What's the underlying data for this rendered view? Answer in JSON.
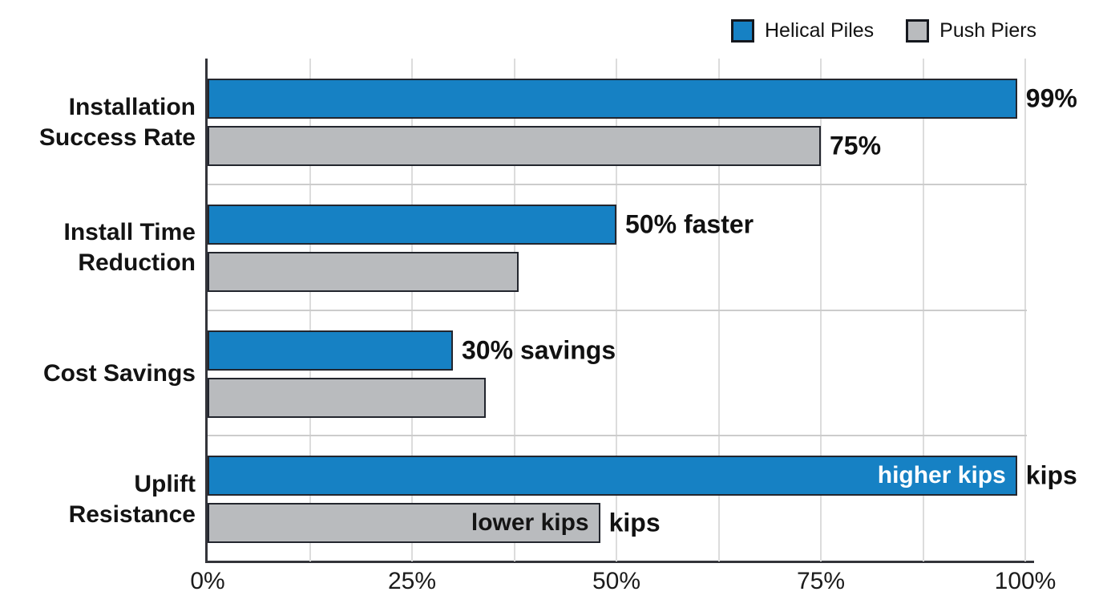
{
  "legend": {
    "items": [
      {
        "label": "Helical Piles",
        "color": "#1681c4"
      },
      {
        "label": "Push Piers",
        "color": "#b9bbbe"
      }
    ]
  },
  "chart_data": {
    "type": "bar",
    "orientation": "horizontal",
    "title": "",
    "xlabel": "",
    "ylabel": "",
    "categories": [
      "Installation Success Rate",
      "Install Time Reduction",
      "Cost Savings",
      "Uplift Resistance"
    ],
    "series": [
      {
        "name": "Helical Piles",
        "color": "#1681c4",
        "values": [
          99,
          50,
          30,
          99
        ],
        "outer_labels": [
          "99%",
          "50% faster",
          "30% savings",
          "kips"
        ],
        "inner_labels": [
          "",
          "",
          "",
          "higher kips"
        ],
        "inner_label_color": "#ffffff"
      },
      {
        "name": "Push Piers",
        "color": "#b9bbbe",
        "values": [
          75,
          38,
          34,
          48
        ],
        "outer_labels": [
          "75%",
          "",
          "",
          "kips"
        ],
        "inner_labels": [
          "",
          "",
          "",
          "lower kips"
        ],
        "inner_label_color": "#141414"
      }
    ],
    "xlim": [
      0,
      100
    ],
    "x_ticks": [
      {
        "label": "0%",
        "pct": 0
      },
      {
        "label": "25%",
        "pct": 25
      },
      {
        "label": "50%",
        "pct": 50
      },
      {
        "label": "75%",
        "pct": 75
      },
      {
        "label": "100%",
        "pct": 100
      }
    ],
    "minor_gridlines_pct": [
      12.5,
      25,
      37.5,
      50,
      62.5,
      75,
      87.5,
      100
    ],
    "legend_position": "top-right",
    "grid": "vertical"
  },
  "colors": {
    "background": "#ffffff",
    "bar_border": "#23262e",
    "gridline": "#dcdcdc",
    "separator": "#cccccc",
    "axis": "#33343a",
    "text": "#101010"
  }
}
